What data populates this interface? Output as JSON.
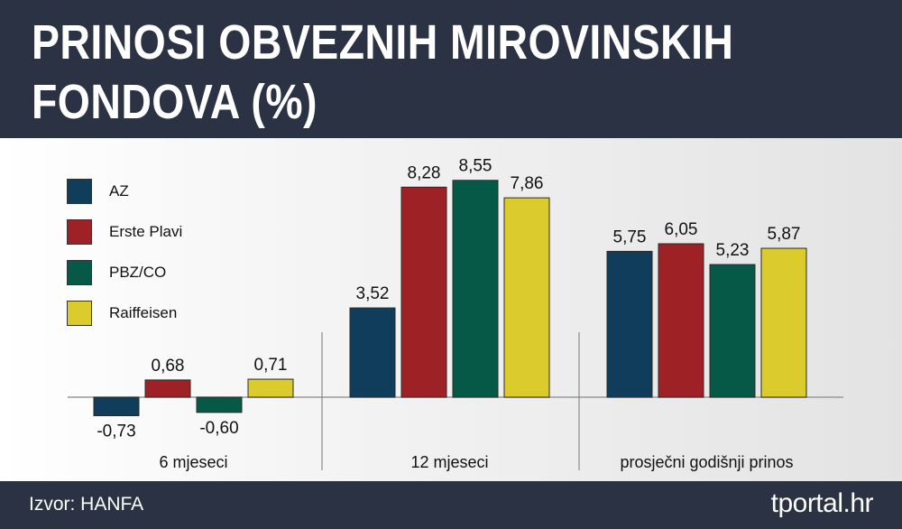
{
  "title": "PRINOSI OBVEZNIH MIROVINSKIH FONDOVA (%)",
  "footer": {
    "source": "Izvor: HANFA",
    "brand": "tportal.hr"
  },
  "chart_data": {
    "type": "bar",
    "categories": [
      "6 mjeseci",
      "12 mjeseci",
      "prosječni godišnji prinos"
    ],
    "series": [
      {
        "name": "AZ",
        "color": "#0f3d5b",
        "values": [
          -0.73,
          3.52,
          5.75
        ],
        "labels": [
          "-0,73",
          "3,52",
          "5,75"
        ]
      },
      {
        "name": "Erste Plavi",
        "color": "#9e2126",
        "values": [
          0.68,
          8.28,
          6.05
        ],
        "labels": [
          "0,68",
          "8,28",
          "6,05"
        ]
      },
      {
        "name": "PBZ/CO",
        "color": "#065847",
        "values": [
          -0.6,
          8.55,
          5.23
        ],
        "labels": [
          "-0,60",
          "8,55",
          "5,23"
        ]
      },
      {
        "name": "Raiffeisen",
        "color": "#dccb2c",
        "values": [
          0.71,
          7.86,
          5.87
        ],
        "labels": [
          "0,71",
          "7,86",
          "5,87"
        ]
      }
    ],
    "legend_position": "top-left",
    "grid": false
  }
}
